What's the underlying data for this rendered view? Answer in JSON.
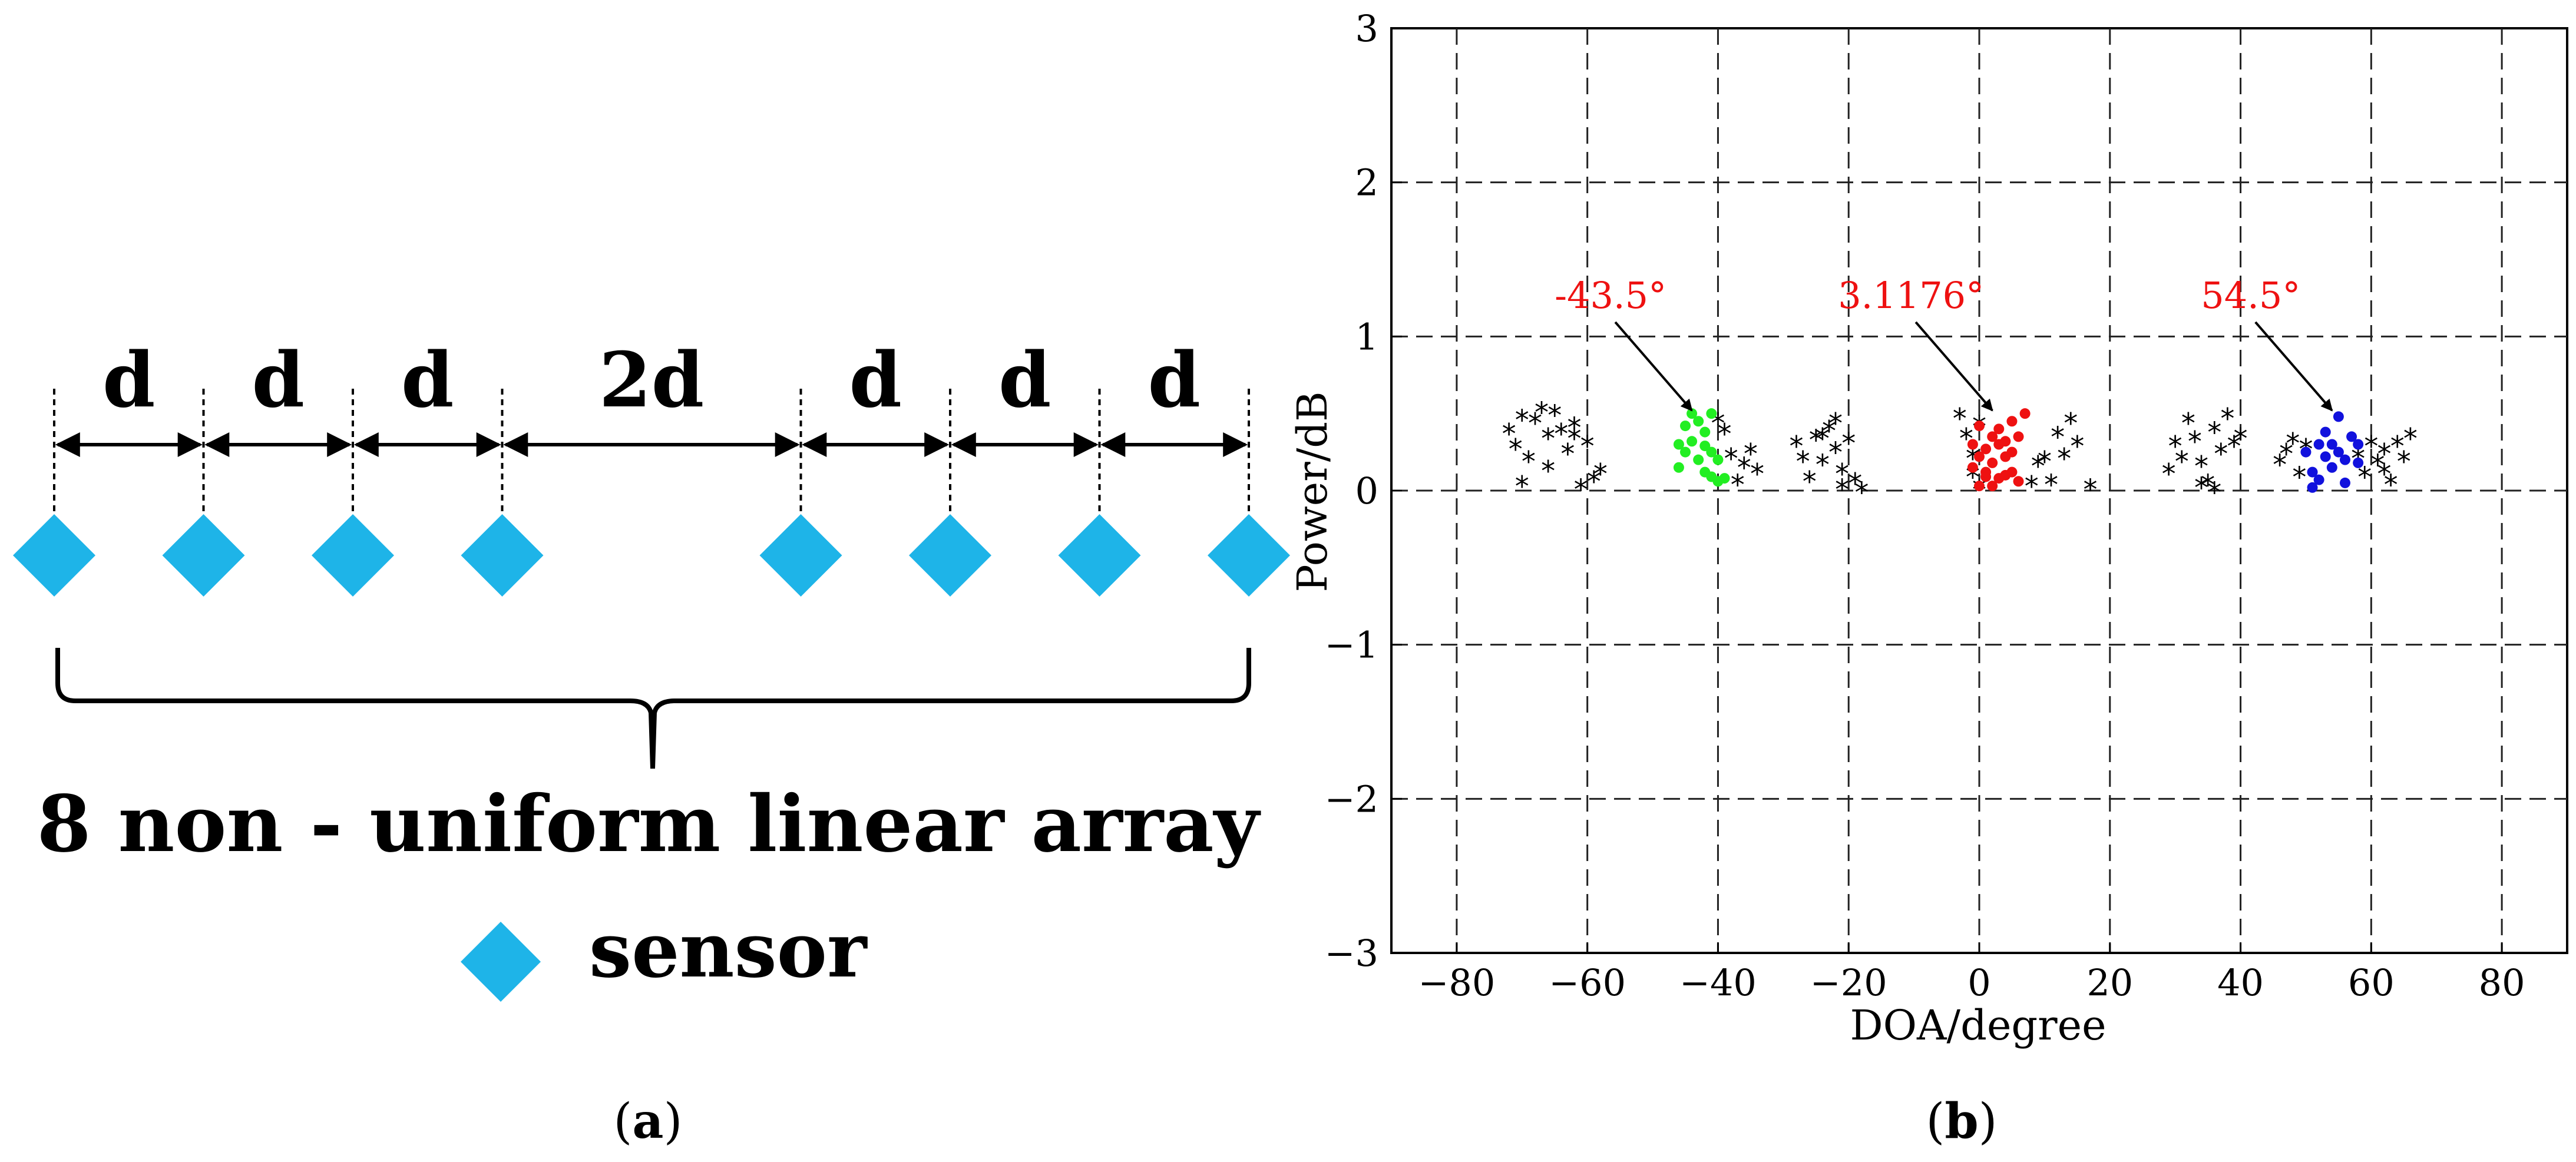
{
  "panel_a": {
    "spacing_labels": [
      "d",
      "d",
      "d",
      "2d",
      "d",
      "d",
      "d"
    ],
    "array_label": "8 non - uniform linear array",
    "legend_label": "sensor",
    "caption_letter": "a",
    "sensor_color": "#1EB4E8",
    "sensor_positions": [
      0,
      1,
      2,
      3,
      5,
      6,
      7,
      8
    ]
  },
  "panel_b": {
    "caption_letter": "b"
  },
  "chart_data": {
    "type": "scatter",
    "title": "",
    "xlabel": "DOA/degree",
    "ylabel": "Power/dB",
    "xlim": [
      -90,
      90
    ],
    "ylim": [
      -3,
      3
    ],
    "xticks": [
      -80,
      -60,
      -40,
      -20,
      0,
      20,
      40,
      60,
      80
    ],
    "yticks": [
      -3,
      -2,
      -1,
      0,
      1,
      2,
      3
    ],
    "grid": true,
    "grid_style": "dashed",
    "series": [
      {
        "marker": "star",
        "color": "#000000",
        "points": [
          [
            -72,
            0.38
          ],
          [
            -71,
            0.28
          ],
          [
            -70,
            0.47
          ],
          [
            -69,
            0.2
          ],
          [
            -68,
            0.45
          ],
          [
            -67,
            0.52
          ],
          [
            -66,
            0.35
          ],
          [
            -66,
            0.14
          ],
          [
            -65,
            0.5
          ],
          [
            -64,
            0.38
          ],
          [
            -63,
            0.25
          ],
          [
            -62,
            0.42
          ],
          [
            -61,
            0.02
          ],
          [
            -60,
            0.3
          ],
          [
            -59,
            0.07
          ],
          [
            -58,
            0.12
          ],
          [
            -70,
            0.04
          ],
          [
            -62,
            0.35
          ],
          [
            -39,
            0.38
          ],
          [
            -38,
            0.22
          ],
          [
            -37,
            0.05
          ],
          [
            -36,
            0.16
          ],
          [
            -35,
            0.25
          ],
          [
            -34,
            0.12
          ],
          [
            -40,
            0.45
          ],
          [
            -28,
            0.3
          ],
          [
            -27,
            0.2
          ],
          [
            -26,
            0.07
          ],
          [
            -25,
            0.34
          ],
          [
            -24,
            0.18
          ],
          [
            -23,
            0.4
          ],
          [
            -22,
            0.26
          ],
          [
            -22,
            0.45
          ],
          [
            -21,
            0.12
          ],
          [
            -21,
            0.02
          ],
          [
            -20,
            0.32
          ],
          [
            -19,
            0.06
          ],
          [
            -18,
            0.0
          ],
          [
            -24,
            0.35
          ],
          [
            -3,
            0.48
          ],
          [
            -2,
            0.35
          ],
          [
            -1,
            0.22
          ],
          [
            0,
            0.43
          ],
          [
            0,
            0.02
          ],
          [
            -1,
            0.1
          ],
          [
            9,
            0.17
          ],
          [
            10,
            0.2
          ],
          [
            11,
            0.05
          ],
          [
            12,
            0.36
          ],
          [
            13,
            0.22
          ],
          [
            14,
            0.45
          ],
          [
            15,
            0.3
          ],
          [
            17,
            0.02
          ],
          [
            8,
            0.04
          ],
          [
            29,
            0.12
          ],
          [
            30,
            0.3
          ],
          [
            31,
            0.2
          ],
          [
            32,
            0.45
          ],
          [
            33,
            0.33
          ],
          [
            34,
            0.17
          ],
          [
            35,
            0.05
          ],
          [
            36,
            0.39
          ],
          [
            37,
            0.25
          ],
          [
            38,
            0.48
          ],
          [
            39,
            0.3
          ],
          [
            40,
            0.35
          ],
          [
            36,
            0.0
          ],
          [
            34,
            0.03
          ],
          [
            46,
            0.18
          ],
          [
            47,
            0.25
          ],
          [
            48,
            0.32
          ],
          [
            49,
            0.1
          ],
          [
            50,
            0.28
          ],
          [
            58,
            0.22
          ],
          [
            59,
            0.1
          ],
          [
            60,
            0.3
          ],
          [
            61,
            0.18
          ],
          [
            62,
            0.25
          ],
          [
            63,
            0.05
          ],
          [
            64,
            0.3
          ],
          [
            65,
            0.2
          ],
          [
            66,
            0.35
          ],
          [
            62,
            0.12
          ]
        ]
      },
      {
        "marker": "dot",
        "color": "#22EE22",
        "points": [
          [
            -46,
            0.3
          ],
          [
            -46,
            0.15
          ],
          [
            -45,
            0.42
          ],
          [
            -45,
            0.25
          ],
          [
            -44,
            0.5
          ],
          [
            -44,
            0.32
          ],
          [
            -43,
            0.2
          ],
          [
            -43,
            0.45
          ],
          [
            -42,
            0.38
          ],
          [
            -42,
            0.12
          ],
          [
            -42,
            0.29
          ],
          [
            -41,
            0.09
          ],
          [
            -41,
            0.5
          ],
          [
            -41,
            0.25
          ],
          [
            -40,
            0.06
          ],
          [
            -40,
            0.2
          ],
          [
            -39,
            0.08
          ]
        ]
      },
      {
        "marker": "dot",
        "color": "#EE1111",
        "points": [
          [
            -1,
            0.3
          ],
          [
            -1,
            0.15
          ],
          [
            0,
            0.42
          ],
          [
            0,
            0.22
          ],
          [
            0,
            0.03
          ],
          [
            1,
            0.27
          ],
          [
            1,
            0.09
          ],
          [
            1,
            0.12
          ],
          [
            2,
            0.35
          ],
          [
            2,
            0.18
          ],
          [
            2,
            0.03
          ],
          [
            3,
            0.3
          ],
          [
            3,
            0.4
          ],
          [
            3,
            0.08
          ],
          [
            4,
            0.22
          ],
          [
            4,
            0.32
          ],
          [
            5,
            0.12
          ],
          [
            5,
            0.25
          ],
          [
            5,
            0.45
          ],
          [
            6,
            0.35
          ],
          [
            6,
            0.06
          ],
          [
            7,
            0.5
          ],
          [
            4,
            0.1
          ]
        ]
      },
      {
        "marker": "dot",
        "color": "#1111DD",
        "points": [
          [
            50,
            0.25
          ],
          [
            51,
            0.12
          ],
          [
            51,
            0.02
          ],
          [
            52,
            0.3
          ],
          [
            52,
            0.07
          ],
          [
            53,
            0.22
          ],
          [
            53,
            0.38
          ],
          [
            54,
            0.3
          ],
          [
            54,
            0.15
          ],
          [
            55,
            0.48
          ],
          [
            55,
            0.25
          ],
          [
            56,
            0.2
          ],
          [
            56,
            0.05
          ],
          [
            57,
            0.35
          ],
          [
            58,
            0.18
          ],
          [
            58,
            0.3
          ]
        ]
      }
    ],
    "annotations": [
      {
        "text": "-43.5°",
        "color": "#EE1111",
        "target": [
          -44,
          0.52
        ]
      },
      {
        "text": "3.1176°",
        "color": "#EE1111",
        "target": [
          2,
          0.52
        ]
      },
      {
        "text": "54.5°",
        "color": "#EE1111",
        "target": [
          54,
          0.52
        ]
      }
    ]
  }
}
